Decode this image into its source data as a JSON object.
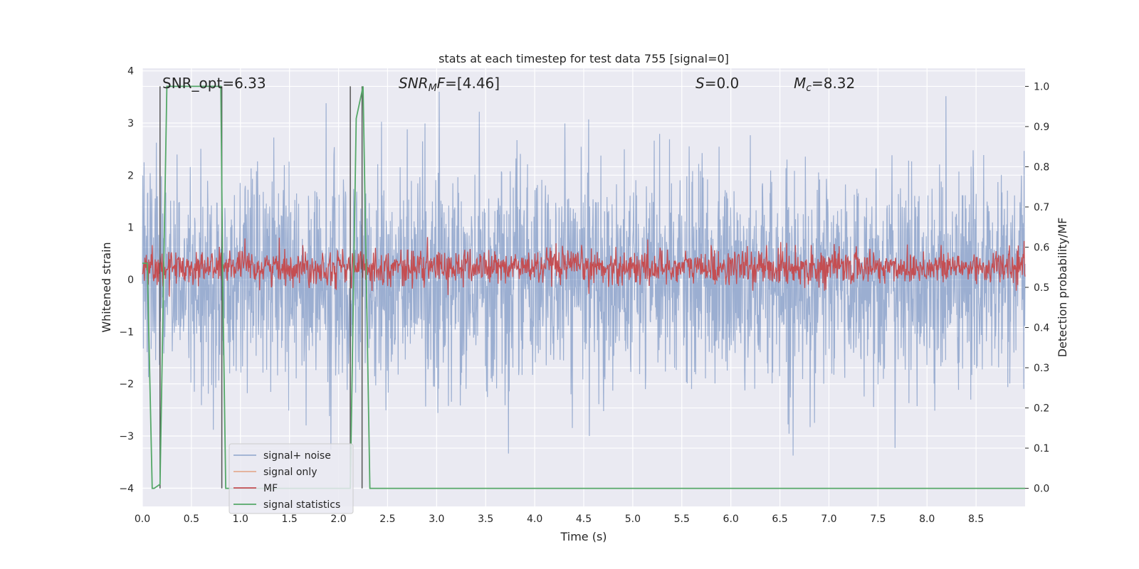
{
  "chart_data": {
    "type": "line",
    "title": "stats at each timestep for test data 755 [signal=0]",
    "xlabel": "Time (s)",
    "ylabel": "Whitened strain",
    "y2label": "Detection probability/MF",
    "xlim": [
      0.0,
      9.0
    ],
    "ylim": [
      -4.35,
      4.05
    ],
    "y2lim": [
      -0.045,
      1.045
    ],
    "x_ticks": [
      "0.0",
      "0.5",
      "1.0",
      "1.5",
      "2.0",
      "2.5",
      "3.0",
      "3.5",
      "4.0",
      "4.5",
      "5.0",
      "5.5",
      "6.0",
      "6.5",
      "7.0",
      "7.5",
      "8.0",
      "8.5"
    ],
    "y_ticks": [
      "−4",
      "−3",
      "−2",
      "−1",
      "0",
      "1",
      "2",
      "3",
      "4"
    ],
    "y2_ticks": [
      "0.0",
      "0.1",
      "0.2",
      "0.3",
      "0.4",
      "0.5",
      "0.6",
      "0.7",
      "0.8",
      "0.9",
      "1.0"
    ],
    "grid": true,
    "legend_position": "lower-left",
    "annotations": {
      "snr_opt": "SNR_opt=6.33",
      "snr_mf_var": "SNR",
      "snr_mf_sub": "M",
      "snr_mf_rest": "F",
      "snr_mf_value": "=[4.46]",
      "s_var": "S",
      "s_value": "=0.0",
      "mc_var": "M",
      "mc_sub": "c",
      "mc_value": "=8.32"
    },
    "series": [
      {
        "name": "signal+ noise",
        "color": "#4c72b0",
        "axis": "left",
        "description": "noisy whitened strain, approx. within ±2.5 with spikes to about ±3.6"
      },
      {
        "name": "signal only",
        "color": "#dd8452",
        "axis": "left",
        "values": []
      },
      {
        "name": "MF",
        "color": "#c44e52",
        "axis": "right",
        "description": "matched filter output fluctuating around 0.55 on right axis (range approx. 0.5–0.62)"
      },
      {
        "name": "signal statistics",
        "color": "#55a868",
        "axis": "right",
        "x": [
          0.0,
          0.05,
          0.1,
          0.12,
          0.18,
          0.25,
          0.8,
          0.82,
          0.85,
          2.12,
          2.18,
          2.25,
          2.32,
          2.5,
          9.0
        ],
        "values": [
          0.56,
          0.56,
          0.0,
          0.0,
          0.01,
          1.0,
          1.0,
          0.5,
          0.0,
          0.0,
          0.92,
          1.0,
          0.0,
          0.0,
          0.0
        ]
      }
    ],
    "vertical_lines_x": [
      0.18,
      0.81,
      2.12,
      2.24
    ]
  }
}
